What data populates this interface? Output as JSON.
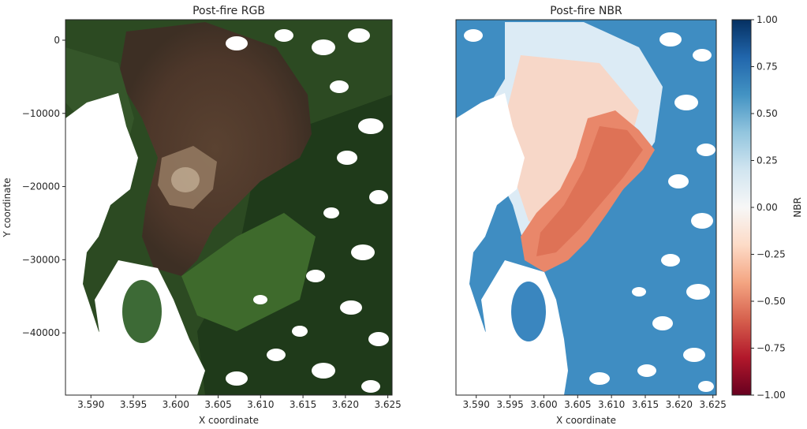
{
  "chart_data": [
    {
      "type": "heatmap",
      "title": "Post-fire RGB",
      "xlabel": "X coordinate",
      "ylabel": "Y coordinate",
      "xlim": [
        3.587,
        3.6255
      ],
      "ylim": [
        -48500,
        2800
      ],
      "x_ticks": [
        3.59,
        3.595,
        3.6,
        3.605,
        3.61,
        3.615,
        3.62,
        3.625
      ],
      "x_tick_labels": [
        "3.590",
        "3.595",
        "3.600",
        "3.605",
        "3.610",
        "3.615",
        "3.620",
        "3.625"
      ],
      "y_ticks": [
        0,
        -10000,
        -20000,
        -30000,
        -40000
      ],
      "y_tick_labels": [
        "0",
        "−10000",
        "−20000",
        "−30000",
        "−40000"
      ],
      "image": "true-color satellite composite: green forest, brown burn scar in center, white cloud patches"
    },
    {
      "type": "heatmap",
      "title": "Post-fire NBR",
      "xlabel": "X coordinate",
      "ylabel": "",
      "xlim": [
        3.587,
        3.6255
      ],
      "ylim": [
        -48500,
        2800
      ],
      "x_ticks": [
        3.59,
        3.595,
        3.6,
        3.605,
        3.61,
        3.615,
        3.62,
        3.625
      ],
      "x_tick_labels": [
        "3.590",
        "3.595",
        "3.600",
        "3.605",
        "3.610",
        "3.615",
        "3.620",
        "3.625"
      ],
      "colormap": "RdBu",
      "colorbar": {
        "label": "NBR",
        "range": [
          -1.0,
          1.0
        ],
        "ticks": [
          1.0,
          0.75,
          0.5,
          0.25,
          0.0,
          -0.25,
          -0.5,
          -0.75,
          -1.0
        ],
        "tick_labels": [
          "1.00",
          "0.75",
          "0.50",
          "0.25",
          "0.00",
          "−0.25",
          "−0.50",
          "−0.75",
          "−1.00"
        ],
        "colors": [
          "#053061",
          "#2166ac",
          "#4393c3",
          "#92c5de",
          "#d1e5f0",
          "#f7f7f7",
          "#fddbc7",
          "#f4a582",
          "#d6604d",
          "#b2182b",
          "#67001f"
        ]
      }
    }
  ]
}
